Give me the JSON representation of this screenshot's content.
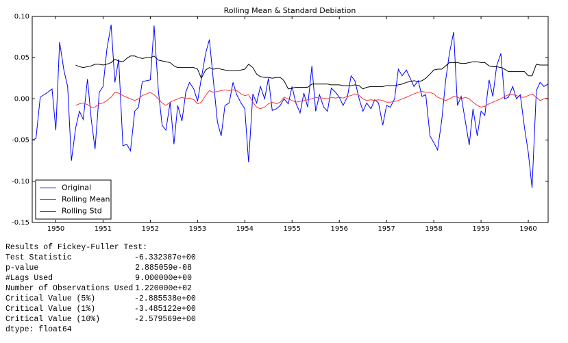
{
  "chart_data": {
    "type": "line",
    "title": "Rolling Mean & Standard Debiation",
    "x": [
      1949.5,
      1949.58,
      1949.67,
      1949.75,
      1949.83,
      1949.92,
      1950,
      1950.08,
      1950.17,
      1950.25,
      1950.33,
      1950.42,
      1950.5,
      1950.58,
      1950.67,
      1950.75,
      1950.83,
      1950.92,
      1951,
      1951.08,
      1951.17,
      1951.25,
      1951.33,
      1951.42,
      1951.5,
      1951.58,
      1951.67,
      1951.75,
      1951.83,
      1951.92,
      1952,
      1952.08,
      1952.17,
      1952.25,
      1952.33,
      1952.42,
      1952.5,
      1952.58,
      1952.67,
      1952.75,
      1952.83,
      1952.92,
      1953,
      1953.08,
      1953.17,
      1953.25,
      1953.33,
      1953.42,
      1953.5,
      1953.58,
      1953.67,
      1953.75,
      1953.83,
      1953.92,
      1954,
      1954.08,
      1954.17,
      1954.25,
      1954.33,
      1954.42,
      1954.5,
      1954.58,
      1954.67,
      1954.75,
      1954.83,
      1954.92,
      1955,
      1955.08,
      1955.17,
      1955.25,
      1955.33,
      1955.42,
      1955.5,
      1955.58,
      1955.67,
      1955.75,
      1955.83,
      1955.92,
      1956,
      1956.08,
      1956.17,
      1956.25,
      1956.33,
      1956.42,
      1956.5,
      1956.58,
      1956.67,
      1956.75,
      1956.83,
      1956.92,
      1957,
      1957.08,
      1957.17,
      1957.25,
      1957.33,
      1957.42,
      1957.5,
      1957.58,
      1957.67,
      1957.75,
      1957.83,
      1957.92,
      1958,
      1958.08,
      1958.17,
      1958.25,
      1958.33,
      1958.42,
      1958.5,
      1958.58,
      1958.67,
      1958.75,
      1958.83,
      1958.92,
      1959,
      1959.08,
      1959.17,
      1959.25,
      1959.33,
      1959.42,
      1959.5,
      1959.58,
      1959.67,
      1959.75,
      1959.83,
      1959.92,
      1960,
      1960.08,
      1960.17,
      1960.25,
      1960.33,
      1960.42
    ],
    "series": [
      {
        "name": "Original",
        "color": "#0000ff",
        "values": [
          -0.05,
          -0.048,
          0.002,
          0.005,
          0.008,
          0.012,
          -0.038,
          0.069,
          0.035,
          0.015,
          -0.075,
          -0.035,
          -0.015,
          -0.025,
          0.024,
          -0.025,
          -0.061,
          0.008,
          0.015,
          0.06,
          0.09,
          0.02,
          0.048,
          -0.057,
          -0.055,
          -0.063,
          -0.015,
          -0.01,
          0.021,
          0.022,
          0.023,
          0.089,
          0.01,
          -0.032,
          -0.038,
          -0.004,
          -0.055,
          -0.008,
          -0.027,
          0.008,
          0.02,
          0.012,
          -0.003,
          0.025,
          0.055,
          0.072,
          0.025,
          -0.028,
          -0.045,
          -0.008,
          -0.005,
          0.02,
          0.005,
          -0.005,
          -0.012,
          -0.077,
          0.006,
          -0.005,
          0.015,
          0,
          0.025,
          -0.014,
          -0.012,
          -0.008,
          0,
          -0.006,
          0.015,
          -0.005,
          -0.017,
          0.007,
          -0.01,
          0.04,
          -0.015,
          0.005,
          -0.01,
          -0.015,
          0.013,
          0.008,
          0.002,
          -0.008,
          0.002,
          0.028,
          0.022,
          0,
          -0.015,
          -0.005,
          -0.012,
          -0.001,
          -0.005,
          -0.032,
          -0.008,
          -0.01,
          0,
          0.036,
          0.028,
          0.035,
          0.025,
          0.015,
          0.022,
          0.003,
          0.005,
          -0.045,
          -0.053,
          -0.062,
          -0.025,
          0.022,
          0.055,
          0.081,
          -0.008,
          0.003,
          -0.028,
          -0.056,
          -0.012,
          -0.045,
          -0.015,
          -0.02,
          0.023,
          0.003,
          0.04,
          0.055,
          0,
          0.002,
          0.015,
          0,
          0.005,
          -0.035,
          -0.065,
          -0.108,
          0.01,
          0.02,
          0.015,
          0.018
        ]
      },
      {
        "name": "Rolling Mean",
        "color": "#ff3030",
        "values": [
          null,
          null,
          null,
          null,
          null,
          null,
          null,
          null,
          null,
          null,
          null,
          -0.008,
          -0.006,
          -0.005,
          -0.007,
          -0.01,
          -0.01,
          -0.006,
          -0.005,
          -0.002,
          0.002,
          0.008,
          0.007,
          0.004,
          0.002,
          0,
          -0.002,
          0,
          0.004,
          0.006,
          0.008,
          0.005,
          0,
          -0.005,
          -0.008,
          -0.004,
          -0.002,
          0,
          0.002,
          0,
          0.001,
          -0.001,
          -0.006,
          -0.004,
          0.004,
          0.01,
          0.008,
          0.009,
          0.01,
          0.011,
          0.01,
          0.011,
          0.01,
          0.006,
          0.004,
          0.005,
          -0.004,
          -0.01,
          -0.012,
          -0.01,
          -0.006,
          -0.004,
          -0.006,
          -0.004,
          0.002,
          0,
          -0.002,
          -0.004,
          -0.003,
          -0.002,
          -0.001,
          0,
          0.002,
          0.001,
          0.001,
          0,
          0.002,
          0.001,
          0.002,
          0.001,
          0.003,
          0.004,
          0.006,
          0.004,
          0,
          -0.002,
          -0.001,
          -0.002,
          -0.001,
          -0.002,
          -0.004,
          -0.004,
          -0.003,
          -0.002,
          0,
          0.002,
          0.004,
          0.006,
          0.008,
          0.009,
          0.008,
          0.008,
          0.006,
          0.002,
          0,
          -0.002,
          0,
          0.003,
          0.002,
          0,
          0.002,
          0,
          -0.004,
          -0.008,
          -0.01,
          -0.009,
          -0.006,
          -0.004,
          -0.002,
          0,
          0.003,
          0.005,
          0.005,
          0.004,
          0.002,
          0.002,
          0.004,
          0.006,
          0.002,
          -0.002,
          0,
          0.001
        ]
      },
      {
        "name": "Rolling Std",
        "color": "#000000",
        "values": [
          null,
          null,
          null,
          null,
          null,
          null,
          null,
          null,
          null,
          null,
          null,
          0.041,
          0.039,
          0.038,
          0.039,
          0.04,
          0.042,
          0.042,
          0.041,
          0.042,
          0.044,
          0.048,
          0.046,
          0.045,
          0.049,
          0.052,
          0.052,
          0.05,
          0.049,
          0.05,
          0.05,
          0.052,
          0.047,
          0.046,
          0.045,
          0.044,
          0.04,
          0.038,
          0.038,
          0.038,
          0.038,
          0.038,
          0.036,
          0.025,
          0.035,
          0.038,
          0.036,
          0.037,
          0.036,
          0.035,
          0.034,
          0.034,
          0.034,
          0.035,
          0.036,
          0.042,
          0.038,
          0.03,
          0.027,
          0.026,
          0.026,
          0.025,
          0.026,
          0.026,
          0.022,
          0.012,
          0.013,
          0.014,
          0.014,
          0.014,
          0.014,
          0.018,
          0.018,
          0.018,
          0.018,
          0.018,
          0.017,
          0.017,
          0.017,
          0.016,
          0.016,
          0.016,
          0.017,
          0.016,
          0.012,
          0.014,
          0.015,
          0.015,
          0.015,
          0.015,
          0.016,
          0.016,
          0.016,
          0.017,
          0.018,
          0.02,
          0.021,
          0.022,
          0.021,
          0.022,
          0.025,
          0.03,
          0.035,
          0.036,
          0.036,
          0.04,
          0.044,
          0.044,
          0.044,
          0.043,
          0.043,
          0.044,
          0.045,
          0.045,
          0.044,
          0.044,
          0.04,
          0.039,
          0.039,
          0.038,
          0.036,
          0.033,
          0.033,
          0.033,
          0.033,
          0.033,
          0.028,
          0.028,
          0.042,
          0.041,
          0.041,
          0.041
        ]
      }
    ],
    "xlim": [
      1949.5,
      1960.42
    ],
    "xticks": [
      1950,
      1951,
      1952,
      1953,
      1954,
      1955,
      1956,
      1957,
      1958,
      1959,
      1960
    ],
    "ylim": [
      -0.15,
      0.1
    ],
    "yticks": [
      {
        "value": -0.15,
        "label": "-0.15"
      },
      {
        "value": -0.1,
        "label": "-0.10"
      },
      {
        "value": -0.05,
        "label": "-0.05"
      },
      {
        "value": 0,
        "label": "0.00"
      },
      {
        "value": 0.05,
        "label": "0.05"
      },
      {
        "value": 0.1,
        "label": "0.10"
      }
    ],
    "grid": false,
    "legend": "lower left"
  },
  "output": {
    "title": "Results of Fickey-Fuller Test:",
    "rows": [
      [
        "Test Statistic",
        "-6.332387e+00"
      ],
      [
        "p-value",
        "2.885059e-08"
      ],
      [
        "#Lags Used",
        "9.000000e+00"
      ],
      [
        "Number of Observations Used",
        "1.220000e+02"
      ],
      [
        "Critical Value (5%)",
        "-2.885538e+00"
      ],
      [
        "Critical Value (1%)",
        "-3.485122e+00"
      ],
      [
        "Critical Value (10%)",
        "-2.579569e+00"
      ]
    ],
    "dtype": "dtype: float64"
  }
}
